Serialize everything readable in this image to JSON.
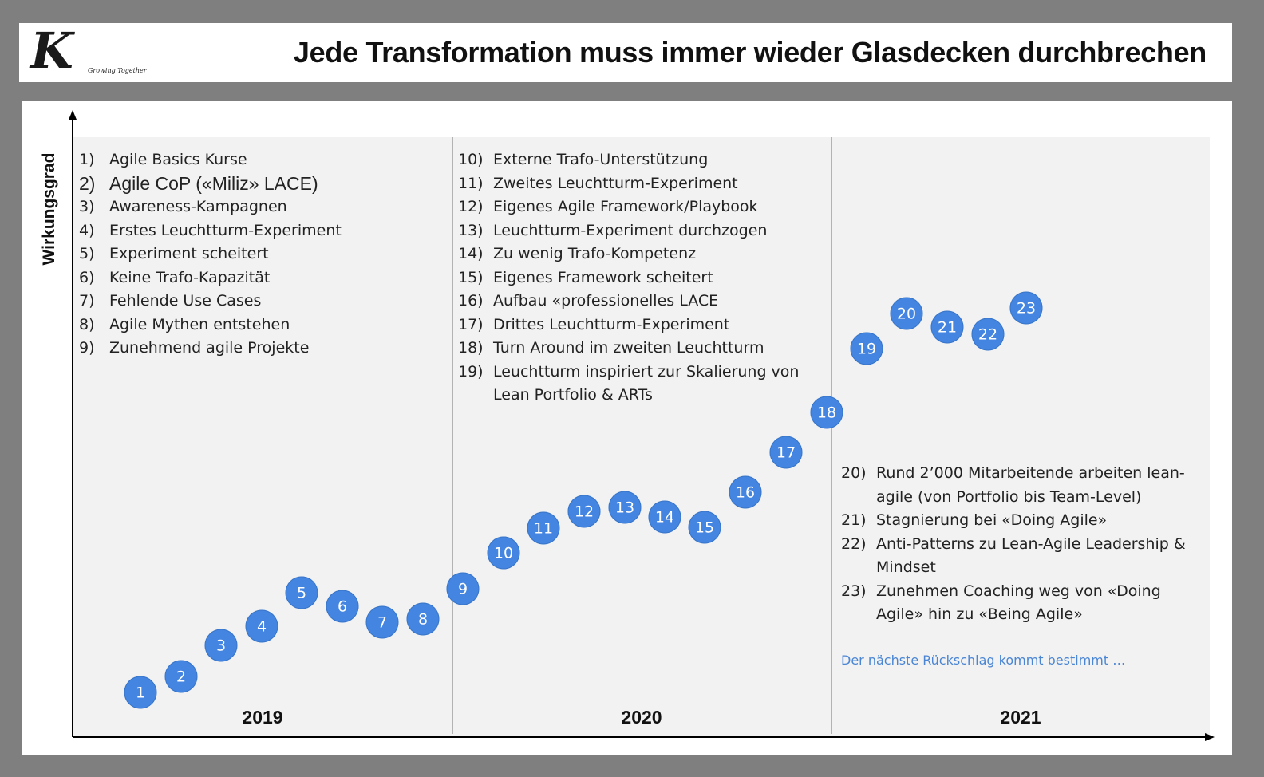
{
  "header": {
    "logo_letter": "K",
    "logo_tagline": "Growing Together",
    "title": "Jede Transformation muss immer wieder Glasdecken durchbrechen"
  },
  "diagram": {
    "y_axis_label": "Wirkungsgrad",
    "years": [
      "2019",
      "2020",
      "2021"
    ],
    "list_2019": [
      {
        "num": "1)",
        "text": "Agile Basics Kurse"
      },
      {
        "num": "2)",
        "text": "Agile CoP («Miliz» LACE)"
      },
      {
        "num": "3)",
        "text": "Awareness-Kampagnen"
      },
      {
        "num": "4)",
        "text": "Erstes Leuchtturm-Experiment"
      },
      {
        "num": "5)",
        "text": "Experiment scheitert"
      },
      {
        "num": "6)",
        "text": "Keine Trafo-Kapazität"
      },
      {
        "num": "7)",
        "text": "Fehlende Use Cases"
      },
      {
        "num": "8)",
        "text": "Agile Mythen entstehen"
      },
      {
        "num": "9)",
        "text": "Zunehmend agile Projekte"
      }
    ],
    "list_2020": [
      {
        "num": "10)",
        "text": "Externe Trafo-Unterstützung"
      },
      {
        "num": "11)",
        "text": "Zweites Leuchtturm-Experiment"
      },
      {
        "num": "12)",
        "text": "Eigenes Agile Framework/Playbook"
      },
      {
        "num": "13)",
        "text": "Leuchtturm-Experiment durchzogen"
      },
      {
        "num": "14)",
        "text": "Zu wenig Trafo-Kompetenz"
      },
      {
        "num": "15)",
        "text": "Eigenes Framework scheitert"
      },
      {
        "num": "16)",
        "text": "Aufbau «professionelles LACE"
      },
      {
        "num": "17)",
        "text": "Drittes Leuchtturm-Experiment"
      },
      {
        "num": "18)",
        "text": "Turn Around im zweiten Leuchtturm"
      },
      {
        "num": "19)",
        "text": "Leuchtturm inspiriert zur Skalierung von Lean Portfolio & ARTs"
      }
    ],
    "list_2021": [
      {
        "num": "20)",
        "text": "Rund 2’000 Mitarbeitende arbeiten lean-agile (von Portfolio bis Team-Level)"
      },
      {
        "num": "21)",
        "text": "Stagnierung bei «Doing Agile»"
      },
      {
        "num": "22)",
        "text": "Anti-Patterns zu Lean-Agile Leadership & Mindset"
      },
      {
        "num": "23)",
        "text": "Zunehmen Coaching weg von «Doing Agile» hin zu «Being Agile»"
      }
    ],
    "note": "Der nächste Rückschlag kommt bestimmt …",
    "points": [
      "1",
      "2",
      "3",
      "4",
      "5",
      "6",
      "7",
      "8",
      "9",
      "10",
      "11",
      "12",
      "13",
      "14",
      "15",
      "16",
      "17",
      "18",
      "19",
      "20",
      "21",
      "22",
      "23"
    ],
    "colors": {
      "bubble": "#4385e0",
      "note": "#4a86d4",
      "frame": "#7f7f7f",
      "plot_bg": "#f2f2f2"
    }
  }
}
